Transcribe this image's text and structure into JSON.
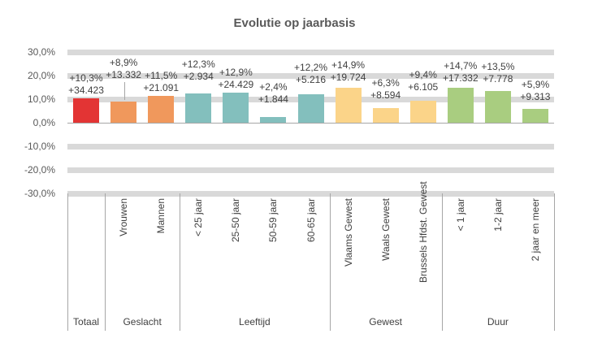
{
  "title": "Evolutie op jaarbasis",
  "colors": {
    "red": "#E33434",
    "orange": "#F0985C",
    "teal": "#83BFBD",
    "yellow": "#FBD489",
    "green": "#A9CD80",
    "grid_band": "#D9D9D9",
    "axis_line": "#A6A6A6",
    "label_text": "#404040",
    "title_text": "#595959"
  },
  "chart_data": {
    "type": "bar",
    "title": "Evolutie op jaarbasis",
    "ylabel": "",
    "xlabel": "",
    "ylim": [
      -30,
      30
    ],
    "ytick_step": 10,
    "ytick_labels": [
      "30,0%",
      "20,0%",
      "10,0%",
      "0,0%",
      "-10,0%",
      "-20,0%",
      "-30,0%"
    ],
    "grid": "thick-horizontal-bands",
    "legend": "none",
    "value_unit": "percent",
    "groups": [
      {
        "label": "Totaal",
        "items": [
          {
            "category": "",
            "pct": 10.3,
            "pct_label": "+10,3%",
            "abs_label": "+34.423",
            "color_key": "red",
            "label_raise": 0,
            "leader": false
          }
        ]
      },
      {
        "label": "Geslacht",
        "items": [
          {
            "category": "Vrouwen",
            "pct": 8.9,
            "pct_label": "+8,9%",
            "abs_label": "+13.332",
            "color_key": "orange",
            "label_raise": 23,
            "leader": true
          },
          {
            "category": "Mannen",
            "pct": 11.5,
            "pct_label": "+11,5%",
            "abs_label": "+21.091",
            "color_key": "orange",
            "label_raise": 0,
            "leader": false
          }
        ]
      },
      {
        "label": "Leeftijd",
        "items": [
          {
            "category": "< 25 jaar",
            "pct": 12.3,
            "pct_label": "+12,3%",
            "abs_label": "+2.934",
            "color_key": "teal",
            "label_raise": 11,
            "leader": false
          },
          {
            "category": "25-50 jaar",
            "pct": 12.9,
            "pct_label": "+12,9%",
            "abs_label": "+24.429",
            "color_key": "teal",
            "label_raise": 0,
            "leader": false
          },
          {
            "category": "50-59 jaar",
            "pct": 2.4,
            "pct_label": "+2,4%",
            "abs_label": "+1.844",
            "color_key": "teal",
            "label_raise": 12,
            "leader": false
          },
          {
            "category": "60-65 jaar",
            "pct": 12.2,
            "pct_label": "+12,2%",
            "abs_label": "+5.216",
            "color_key": "teal",
            "label_raise": 8,
            "leader": false
          }
        ]
      },
      {
        "label": "Gewest",
        "items": [
          {
            "category": "Vlaams Gewest",
            "pct": 14.9,
            "pct_label": "+14,9%",
            "abs_label": "+19.724",
            "color_key": "yellow",
            "label_raise": 3,
            "leader": false
          },
          {
            "category": "Waals Gewest",
            "pct": 6.3,
            "pct_label": "+6,3%",
            "abs_label": "+8.594",
            "color_key": "yellow",
            "label_raise": 6,
            "leader": false
          },
          {
            "category": "Brussels Hfdst. Gewest",
            "pct": 9.4,
            "pct_label": "+9,4%",
            "abs_label": "+6.105",
            "color_key": "yellow",
            "label_raise": 7,
            "leader": false
          }
        ]
      },
      {
        "label": "Duur",
        "items": [
          {
            "category": "< 1 jaar",
            "pct": 14.7,
            "pct_label": "+14,7%",
            "abs_label": "+17.332",
            "color_key": "green",
            "label_raise": 2,
            "leader": false
          },
          {
            "category": "1-2 jaar",
            "pct": 13.5,
            "pct_label": "+13,5%",
            "abs_label": "+7.778",
            "color_key": "green",
            "label_raise": 5,
            "leader": false
          },
          {
            "category": "2 jaar en meer",
            "pct": 5.9,
            "pct_label": "+5,9%",
            "abs_label": "+9.313",
            "color_key": "green",
            "label_raise": 5,
            "leader": false
          }
        ]
      }
    ]
  }
}
